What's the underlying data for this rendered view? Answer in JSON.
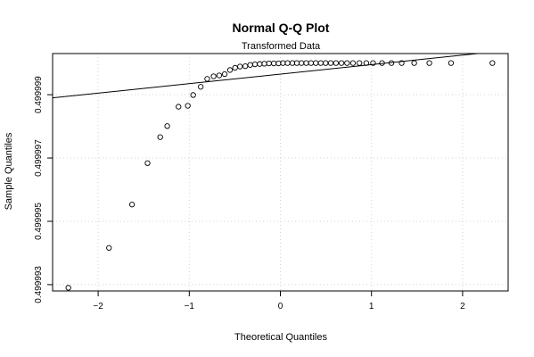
{
  "chart_data": {
    "type": "scatter",
    "title": "Normal Q-Q Plot",
    "subtitle": "Transformed Data",
    "xlabel": "Theoretical Quantiles",
    "ylabel": "Sample Quantiles",
    "xlim": [
      -2.5,
      2.5
    ],
    "ylim": [
      0.4999928,
      0.5000003
    ],
    "x_ticks": [
      -2,
      -1,
      0,
      1,
      2
    ],
    "x_tick_labels": [
      "−2",
      "−1",
      "0",
      "1",
      "2"
    ],
    "y_ticks": [
      0.499993,
      0.499995,
      0.499997,
      0.499999
    ],
    "y_tick_labels": [
      "0.499993",
      "0.499995",
      "0.499997",
      "0.499999"
    ],
    "grid": true,
    "reference_line": {
      "x": [
        -2.5,
        2.5
      ],
      "y": [
        0.4999989,
        0.5000004
      ]
    },
    "points": [
      {
        "x": -2.327,
        "y": 0.4999929
      },
      {
        "x": -1.881,
        "y": 0.49999416
      },
      {
        "x": -1.628,
        "y": 0.49999553
      },
      {
        "x": -1.458,
        "y": 0.49999684
      },
      {
        "x": -1.319,
        "y": 0.49999766
      },
      {
        "x": -1.242,
        "y": 0.49999801
      },
      {
        "x": -1.118,
        "y": 0.49999862
      },
      {
        "x": -1.016,
        "y": 0.49999865
      },
      {
        "x": -0.957,
        "y": 0.49999899
      },
      {
        "x": -0.874,
        "y": 0.49999925
      },
      {
        "x": -0.803,
        "y": 0.4999995
      },
      {
        "x": -0.733,
        "y": 0.49999958
      },
      {
        "x": -0.671,
        "y": 0.49999961
      },
      {
        "x": -0.611,
        "y": 0.49999965
      },
      {
        "x": -0.553,
        "y": 0.49999978
      },
      {
        "x": -0.497,
        "y": 0.49999985
      },
      {
        "x": -0.443,
        "y": 0.49999989
      },
      {
        "x": -0.385,
        "y": 0.4999999
      },
      {
        "x": -0.331,
        "y": 0.49999994
      },
      {
        "x": -0.279,
        "y": 0.49999996
      },
      {
        "x": -0.227,
        "y": 0.49999997
      },
      {
        "x": -0.176,
        "y": 0.49999998
      },
      {
        "x": -0.125,
        "y": 0.49999999
      },
      {
        "x": -0.072,
        "y": 0.49999999
      },
      {
        "x": -0.021,
        "y": 0.49999999
      },
      {
        "x": 0.028,
        "y": 0.5
      },
      {
        "x": 0.079,
        "y": 0.5
      },
      {
        "x": 0.132,
        "y": 0.5
      },
      {
        "x": 0.18,
        "y": 0.5
      },
      {
        "x": 0.231,
        "y": 0.5
      },
      {
        "x": 0.284,
        "y": 0.5
      },
      {
        "x": 0.336,
        "y": 0.5
      },
      {
        "x": 0.389,
        "y": 0.5
      },
      {
        "x": 0.443,
        "y": 0.5
      },
      {
        "x": 0.497,
        "y": 0.5
      },
      {
        "x": 0.553,
        "y": 0.5
      },
      {
        "x": 0.61,
        "y": 0.5
      },
      {
        "x": 0.671,
        "y": 0.5
      },
      {
        "x": 0.732,
        "y": 0.5
      },
      {
        "x": 0.797,
        "y": 0.5
      },
      {
        "x": 0.868,
        "y": 0.5
      },
      {
        "x": 0.943,
        "y": 0.5
      },
      {
        "x": 1.017,
        "y": 0.5
      },
      {
        "x": 1.116,
        "y": 0.5
      },
      {
        "x": 1.219,
        "y": 0.5
      },
      {
        "x": 1.331,
        "y": 0.5
      },
      {
        "x": 1.469,
        "y": 0.5
      },
      {
        "x": 1.635,
        "y": 0.5
      },
      {
        "x": 1.873,
        "y": 0.5
      },
      {
        "x": 2.327,
        "y": 0.5
      }
    ]
  }
}
